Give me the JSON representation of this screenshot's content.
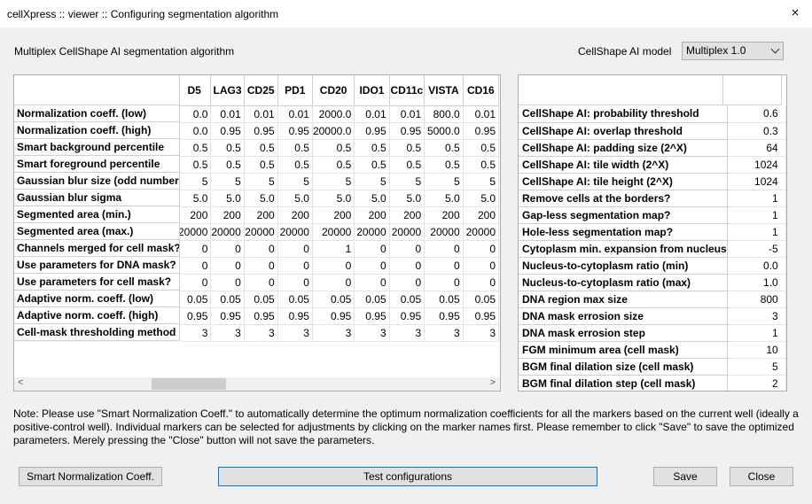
{
  "window": {
    "title": "cellXpress :: viewer :: Configuring segmentation algorithm"
  },
  "header": {
    "subtitle": "Multiplex CellShape AI segmentation algorithm",
    "model_label": "CellShape AI model",
    "model_selected": "Multiplex 1.0"
  },
  "left_table": {
    "columns": [
      "D5",
      "LAG3",
      "CD25",
      "PD1",
      "CD20",
      "IDO1",
      "CD11c",
      "VISTA",
      "CD16"
    ],
    "rows": [
      {
        "label": "Normalization coeff. (low)",
        "values": [
          "0.0",
          "0.01",
          "0.01",
          "0.01",
          "2000.0",
          "0.01",
          "0.01",
          "800.0",
          "0.01"
        ]
      },
      {
        "label": "Normalization coeff. (high)",
        "values": [
          "0.0",
          "0.95",
          "0.95",
          "0.95",
          "20000.0",
          "0.95",
          "0.95",
          "5000.0",
          "0.95"
        ]
      },
      {
        "label": "Smart background percentile",
        "values": [
          "0.5",
          "0.5",
          "0.5",
          "0.5",
          "0.5",
          "0.5",
          "0.5",
          "0.5",
          "0.5"
        ]
      },
      {
        "label": "Smart foreground percentile",
        "values": [
          "0.5",
          "0.5",
          "0.5",
          "0.5",
          "0.5",
          "0.5",
          "0.5",
          "0.5",
          "0.5"
        ]
      },
      {
        "label": "Gaussian blur size (odd number)",
        "values": [
          "5",
          "5",
          "5",
          "5",
          "5",
          "5",
          "5",
          "5",
          "5"
        ]
      },
      {
        "label": "Gaussian blur sigma",
        "values": [
          "5.0",
          "5.0",
          "5.0",
          "5.0",
          "5.0",
          "5.0",
          "5.0",
          "5.0",
          "5.0"
        ]
      },
      {
        "label": "Segmented area (min.)",
        "values": [
          "200",
          "200",
          "200",
          "200",
          "200",
          "200",
          "200",
          "200",
          "200"
        ]
      },
      {
        "label": "Segmented area (max.)",
        "values": [
          "20000",
          "20000",
          "20000",
          "20000",
          "20000",
          "20000",
          "20000",
          "20000",
          "20000"
        ]
      },
      {
        "label": "Channels merged for cell mask?",
        "values": [
          "0",
          "0",
          "0",
          "0",
          "1",
          "0",
          "0",
          "0",
          "0"
        ]
      },
      {
        "label": "Use parameters for DNA mask?",
        "values": [
          "0",
          "0",
          "0",
          "0",
          "0",
          "0",
          "0",
          "0",
          "0"
        ]
      },
      {
        "label": "Use parameters for cell mask?",
        "values": [
          "0",
          "0",
          "0",
          "0",
          "0",
          "0",
          "0",
          "0",
          "0"
        ]
      },
      {
        "label": "Adaptive norm. coeff. (low)",
        "values": [
          "0.05",
          "0.05",
          "0.05",
          "0.05",
          "0.05",
          "0.05",
          "0.05",
          "0.05",
          "0.05"
        ]
      },
      {
        "label": "Adaptive norm. coeff. (high)",
        "values": [
          "0.95",
          "0.95",
          "0.95",
          "0.95",
          "0.95",
          "0.95",
          "0.95",
          "0.95",
          "0.95"
        ]
      },
      {
        "label": "Cell-mask thresholding method",
        "values": [
          "3",
          "3",
          "3",
          "3",
          "3",
          "3",
          "3",
          "3",
          "3"
        ]
      }
    ]
  },
  "right_table": {
    "rows": [
      {
        "label": "CellShape AI: probability threshold",
        "value": "0.6"
      },
      {
        "label": "CellShape AI: overlap threshold",
        "value": "0.3"
      },
      {
        "label": "CellShape AI: padding size (2^X)",
        "value": "64"
      },
      {
        "label": "CellShape AI: tile width (2^X)",
        "value": "1024"
      },
      {
        "label": "CellShape AI: tile height (2^X)",
        "value": "1024"
      },
      {
        "label": "Remove cells at the borders?",
        "value": "1"
      },
      {
        "label": "Gap-less segmentation map?",
        "value": "1"
      },
      {
        "label": "Hole-less segmentation map?",
        "value": "1"
      },
      {
        "label": "Cytoplasm min. expansion from nucleus",
        "value": "-5"
      },
      {
        "label": "Nucleus-to-cytoplasm ratio (min)",
        "value": "0.0"
      },
      {
        "label": "Nucleus-to-cytoplasm ratio (max)",
        "value": "1.0"
      },
      {
        "label": "DNA region max size",
        "value": "800"
      },
      {
        "label": "DNA mask errosion size",
        "value": "3"
      },
      {
        "label": "DNA mask errosion step",
        "value": "1"
      },
      {
        "label": "FGM minimum area (cell mask)",
        "value": "10"
      },
      {
        "label": "BGM final dilation size (cell mask)",
        "value": "5"
      },
      {
        "label": "BGM final dilation step (cell mask)",
        "value": "2"
      }
    ]
  },
  "note": "Note: Please use \"Smart Normalization Coeff.\" to automatically determine the optimum normalization coefficients for all the markers based on the current well (ideally a positive-control well). Individual markers can be selected for adjustments by clicking on the marker names first. Please remember to click \"Save\" to save the optimized parameters. Merely pressing the \"Close\" button will not save the parameters.",
  "buttons": {
    "smart": "Smart Normalization Coeff.",
    "test": "Test configurations",
    "save": "Save",
    "close": "Close"
  },
  "icons": {
    "close": "×",
    "scroll_left": "<",
    "scroll_right": ">"
  }
}
